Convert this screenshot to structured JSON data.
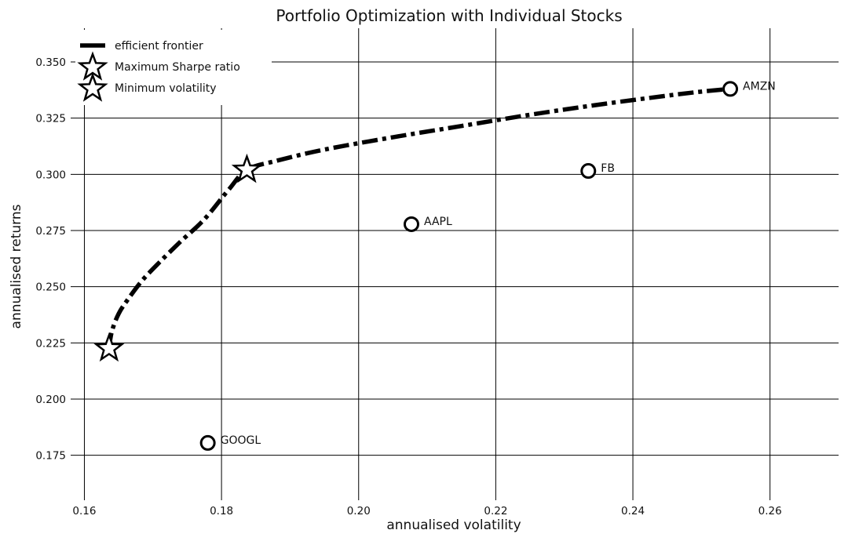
{
  "chart_data": {
    "type": "scatter",
    "title": "Portfolio Optimization with Individual Stocks",
    "xlabel": "annualised volatility",
    "ylabel": "annualised returns",
    "xlim": [
      0.158,
      0.27
    ],
    "ylim": [
      0.155,
      0.365
    ],
    "xticks": [
      0.16,
      0.18,
      0.2,
      0.22,
      0.24,
      0.26
    ],
    "xtick_labels": [
      "0.16",
      "0.18",
      "0.20",
      "0.22",
      "0.24",
      "0.26"
    ],
    "yticks": [
      0.175,
      0.2,
      0.225,
      0.25,
      0.275,
      0.3,
      0.325,
      0.35
    ],
    "ytick_labels": [
      "0.175",
      "0.200",
      "0.225",
      "0.250",
      "0.275",
      "0.300",
      "0.325",
      "0.350"
    ],
    "grid": true,
    "legend_position": "top-left",
    "legend": [
      {
        "label": "efficient frontier",
        "marker": "line"
      },
      {
        "label": "Maximum Sharpe ratio",
        "marker": "star"
      },
      {
        "label": "Minimum volatility",
        "marker": "star"
      }
    ],
    "stocks": [
      {
        "name": "AMZN",
        "x": 0.2542,
        "y": 0.338
      },
      {
        "name": "FB",
        "x": 0.2335,
        "y": 0.3015
      },
      {
        "name": "AAPL",
        "x": 0.2077,
        "y": 0.2778
      },
      {
        "name": "GOOGL",
        "x": 0.178,
        "y": 0.1805
      }
    ],
    "max_sharpe": {
      "x": 0.1837,
      "y": 0.302
    },
    "min_volatility": {
      "x": 0.1636,
      "y": 0.2225
    },
    "efficient_frontier": [
      [
        0.1636,
        0.2225
      ],
      [
        0.164,
        0.23
      ],
      [
        0.165,
        0.238
      ],
      [
        0.1665,
        0.245
      ],
      [
        0.1685,
        0.253
      ],
      [
        0.171,
        0.261
      ],
      [
        0.174,
        0.27
      ],
      [
        0.1775,
        0.28
      ],
      [
        0.181,
        0.293
      ],
      [
        0.1837,
        0.302
      ],
      [
        0.188,
        0.306
      ],
      [
        0.195,
        0.311
      ],
      [
        0.205,
        0.3165
      ],
      [
        0.215,
        0.3215
      ],
      [
        0.225,
        0.3265
      ],
      [
        0.235,
        0.331
      ],
      [
        0.245,
        0.335
      ],
      [
        0.25,
        0.3368
      ],
      [
        0.2542,
        0.338
      ]
    ]
  }
}
